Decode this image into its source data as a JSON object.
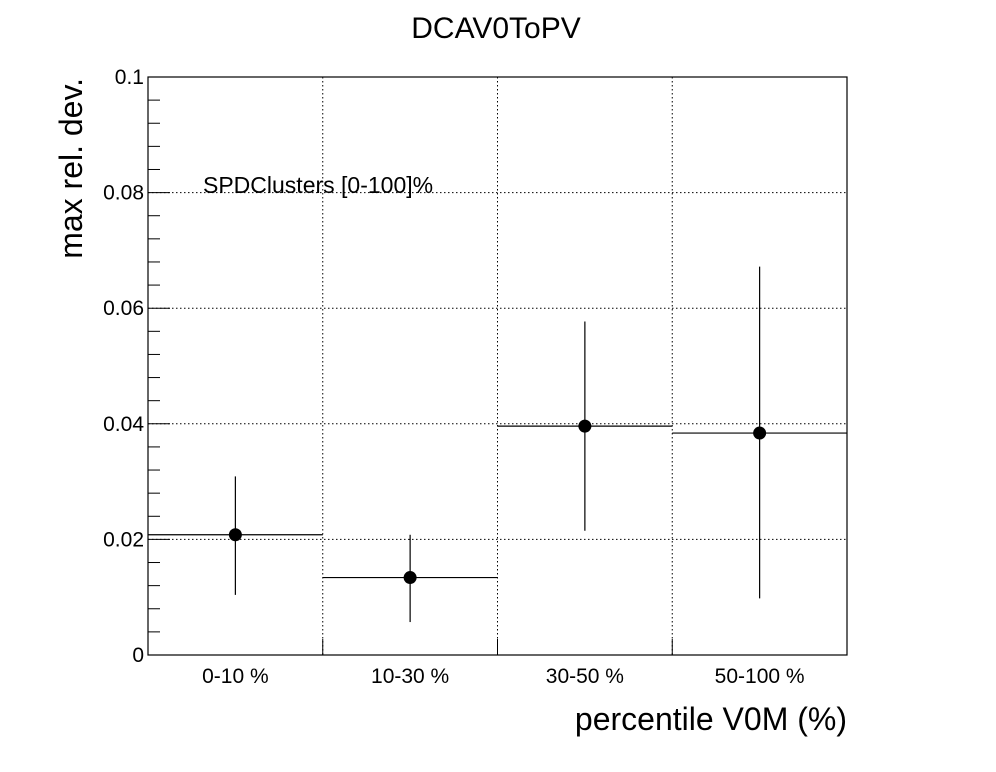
{
  "chart_data": {
    "type": "scatter",
    "title": "DCAV0ToPV",
    "xlabel": "percentile V0M (%)",
    "ylabel": "max rel. dev.",
    "annotation": "SPDClusters [0-100]%",
    "categories": [
      "0-10 %",
      "10-30 %",
      "30-50 %",
      "50-100 %"
    ],
    "values": [
      0.0208,
      0.0134,
      0.0396,
      0.0384
    ],
    "errors_low": [
      0.0104,
      0.0077,
      0.0181,
      0.0286
    ],
    "errors_high": [
      0.0101,
      0.0074,
      0.0181,
      0.0288
    ],
    "ylim": [
      0,
      0.1
    ],
    "yticks": [
      0,
      0.02,
      0.04,
      0.06,
      0.08,
      0.1
    ],
    "ytick_labels": [
      "0",
      "0.02",
      "0.04",
      "0.06",
      "0.08",
      "0.1"
    ],
    "grid": true,
    "legend": "none"
  }
}
